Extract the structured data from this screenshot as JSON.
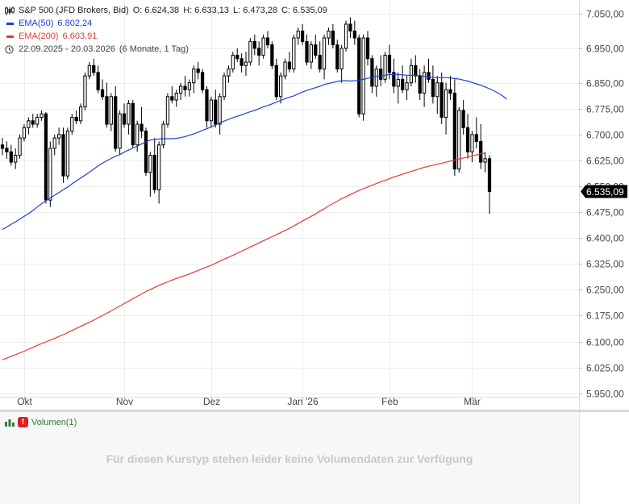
{
  "header": {
    "instrument": "S&P 500 (JFD Brokers, Bid)",
    "open_label": "O:",
    "open": "6.624,38",
    "high_label": "H:",
    "high": "6.633,13",
    "low_label": "L:",
    "low": "6.473,28",
    "close_label": "C:",
    "close": "6.535,09",
    "ema50_label": "EMA(50)",
    "ema50_value": "6.802,24",
    "ema200_label": "EMA(200)",
    "ema200_value": "6.603,91",
    "range": "22.09.2025 - 20.03.2026",
    "range_detail": "(6 Monate, 1 Tag)"
  },
  "volume": {
    "label": "Volumen(1)",
    "message": "Für diesen Kurstyp stehen leider keine Volumendaten zur Verfügung"
  },
  "colors": {
    "ema50": "#1f3fd6",
    "ema200": "#e53935",
    "candle": "#000000",
    "current_price_bg": "#000000"
  },
  "chart_data": {
    "type": "candlestick",
    "y_ticks": [
      "7.050,00",
      "6.950,00",
      "6.850,00",
      "6.775,00",
      "6.700,00",
      "6.625,00",
      "6.550,00",
      "6.475,00",
      "6.400,00",
      "6.325,00",
      "6.250,00",
      "6.175,00",
      "6.100,00",
      "6.025,00",
      "5.950,00"
    ],
    "y_tick_values": [
      7050,
      6950,
      6850,
      6775,
      6700,
      6625,
      6550,
      6475,
      6400,
      6325,
      6250,
      6175,
      6100,
      6025,
      5950
    ],
    "ylim": [
      5940,
      7090
    ],
    "x_ticks": [
      "Okt",
      "Nov",
      "Dez",
      "Jan '26",
      "Feb",
      "Mär"
    ],
    "x_tick_index": [
      5,
      28,
      48,
      69,
      89,
      108
    ],
    "current_price": "6.535,09",
    "series": [
      {
        "name": "EMA(50)",
        "values": [
          6425,
          6432,
          6440,
          6447,
          6455,
          6463,
          6471,
          6480,
          6490,
          6499,
          6508,
          6516,
          6524,
          6532,
          6540,
          6548,
          6557,
          6566,
          6574,
          6582,
          6591,
          6600,
          6609,
          6617,
          6624,
          6631,
          6637,
          6642,
          6649,
          6655,
          6661,
          6666,
          6673,
          6679,
          6684,
          6686,
          6687,
          6688,
          6688,
          6688,
          6689,
          6691,
          6694,
          6698,
          6702,
          6707,
          6712,
          6717,
          6722,
          6728,
          6734,
          6739,
          6744,
          6749,
          6753,
          6757,
          6762,
          6766,
          6770,
          6775,
          6780,
          6784,
          6789,
          6794,
          6799,
          6804,
          6808,
          6812,
          6818,
          6823,
          6828,
          6832,
          6836,
          6840,
          6845,
          6848,
          6851,
          6854,
          6856,
          6856,
          6855,
          6856,
          6858,
          6860,
          6863,
          6866,
          6869,
          6870,
          6872,
          6874,
          6874,
          6874,
          6873,
          6872,
          6872,
          6872,
          6871,
          6869,
          6867,
          6866,
          6865,
          6865,
          6865,
          6864,
          6862,
          6861,
          6858,
          6855,
          6851,
          6847,
          6843,
          6838,
          6833,
          6827,
          6820,
          6812,
          6803
        ]
      },
      {
        "name": "EMA(200)",
        "values": [
          6047,
          6052,
          6057,
          6062,
          6067,
          6072,
          6078,
          6083,
          6089,
          6094,
          6099,
          6104,
          6109,
          6115,
          6120,
          6126,
          6132,
          6138,
          6144,
          6150,
          6156,
          6162,
          6169,
          6175,
          6182,
          6189,
          6196,
          6203,
          6210,
          6217,
          6224,
          6231,
          6238,
          6245,
          6251,
          6257,
          6263,
          6268,
          6273,
          6278,
          6283,
          6287,
          6291,
          6296,
          6301,
          6306,
          6311,
          6316,
          6321,
          6327,
          6333,
          6339,
          6344,
          6350,
          6356,
          6362,
          6368,
          6374,
          6380,
          6386,
          6392,
          6398,
          6404,
          6410,
          6416,
          6422,
          6428,
          6435,
          6442,
          6449,
          6456,
          6463,
          6470,
          6478,
          6485,
          6493,
          6500,
          6507,
          6514,
          6520,
          6526,
          6532,
          6538,
          6543,
          6548,
          6553,
          6558,
          6563,
          6567,
          6572,
          6577,
          6581,
          6585,
          6589,
          6593,
          6597,
          6601,
          6605,
          6608,
          6611,
          6614,
          6617,
          6620,
          6623,
          6626,
          6629,
          6632,
          6635,
          6638,
          6641,
          6644,
          6646,
          6648,
          6650,
          6651,
          6652,
          6604
        ]
      },
      {
        "name": "OHLC",
        "values": [
          [
            6670,
            6690,
            6640,
            6660
          ],
          [
            6660,
            6680,
            6630,
            6650
          ],
          [
            6650,
            6670,
            6610,
            6620
          ],
          [
            6620,
            6660,
            6600,
            6640
          ],
          [
            6640,
            6700,
            6630,
            6690
          ],
          [
            6690,
            6730,
            6680,
            6720
          ],
          [
            6720,
            6750,
            6700,
            6740
          ],
          [
            6740,
            6760,
            6720,
            6730
          ],
          [
            6730,
            6760,
            6720,
            6750
          ],
          [
            6750,
            6770,
            6740,
            6760
          ],
          [
            6760,
            6765,
            6500,
            6510
          ],
          [
            6510,
            6680,
            6490,
            6660
          ],
          [
            6660,
            6700,
            6640,
            6690
          ],
          [
            6690,
            6720,
            6670,
            6700
          ],
          [
            6700,
            6720,
            6560,
            6580
          ],
          [
            6580,
            6720,
            6570,
            6710
          ],
          [
            6710,
            6760,
            6700,
            6750
          ],
          [
            6750,
            6770,
            6730,
            6740
          ],
          [
            6740,
            6790,
            6730,
            6780
          ],
          [
            6780,
            6880,
            6770,
            6870
          ],
          [
            6870,
            6910,
            6860,
            6900
          ],
          [
            6900,
            6920,
            6870,
            6880
          ],
          [
            6880,
            6900,
            6820,
            6830
          ],
          [
            6830,
            6860,
            6800,
            6810
          ],
          [
            6810,
            6850,
            6720,
            6730
          ],
          [
            6730,
            6820,
            6710,
            6810
          ],
          [
            6810,
            6840,
            6650,
            6660
          ],
          [
            6660,
            6770,
            6640,
            6760
          ],
          [
            6760,
            6790,
            6720,
            6730
          ],
          [
            6730,
            6800,
            6700,
            6790
          ],
          [
            6790,
            6800,
            6660,
            6670
          ],
          [
            6670,
            6740,
            6650,
            6730
          ],
          [
            6730,
            6780,
            6690,
            6710
          ],
          [
            6710,
            6720,
            6580,
            6590
          ],
          [
            6590,
            6650,
            6520,
            6640
          ],
          [
            6640,
            6690,
            6530,
            6540
          ],
          [
            6540,
            6680,
            6500,
            6670
          ],
          [
            6670,
            6740,
            6660,
            6730
          ],
          [
            6730,
            6820,
            6720,
            6810
          ],
          [
            6810,
            6840,
            6790,
            6800
          ],
          [
            6800,
            6830,
            6780,
            6820
          ],
          [
            6820,
            6850,
            6800,
            6840
          ],
          [
            6840,
            6870,
            6810,
            6830
          ],
          [
            6830,
            6860,
            6810,
            6850
          ],
          [
            6850,
            6900,
            6820,
            6890
          ],
          [
            6890,
            6910,
            6860,
            6880
          ],
          [
            6880,
            6890,
            6820,
            6830
          ],
          [
            6830,
            6840,
            6720,
            6740
          ],
          [
            6740,
            6810,
            6720,
            6800
          ],
          [
            6800,
            6830,
            6720,
            6730
          ],
          [
            6730,
            6820,
            6700,
            6810
          ],
          [
            6810,
            6880,
            6800,
            6870
          ],
          [
            6870,
            6900,
            6850,
            6890
          ],
          [
            6890,
            6940,
            6880,
            6930
          ],
          [
            6930,
            6950,
            6910,
            6920
          ],
          [
            6920,
            6935,
            6880,
            6900
          ],
          [
            6900,
            6940,
            6870,
            6910
          ],
          [
            6910,
            6980,
            6900,
            6970
          ],
          [
            6970,
            6990,
            6930,
            6950
          ],
          [
            6950,
            6970,
            6900,
            6930
          ],
          [
            6930,
            6990,
            6920,
            6980
          ],
          [
            6980,
            7000,
            6950,
            6960
          ],
          [
            6960,
            6970,
            6890,
            6900
          ],
          [
            6900,
            6920,
            6800,
            6810
          ],
          [
            6810,
            6880,
            6790,
            6870
          ],
          [
            6870,
            6920,
            6860,
            6910
          ],
          [
            6910,
            6940,
            6880,
            6890
          ],
          [
            6890,
            6990,
            6880,
            6980
          ],
          [
            6980,
            7010,
            6960,
            7000
          ],
          [
            7000,
            7020,
            6960,
            6970
          ],
          [
            6970,
            6990,
            6900,
            6910
          ],
          [
            6910,
            6970,
            6890,
            6960
          ],
          [
            6960,
            6990,
            6920,
            6930
          ],
          [
            6930,
            6970,
            6880,
            6890
          ],
          [
            6890,
            6990,
            6860,
            6980
          ],
          [
            6980,
            7010,
            6960,
            7000
          ],
          [
            7000,
            7020,
            6950,
            6960
          ],
          [
            6960,
            6975,
            6880,
            6890
          ],
          [
            6890,
            6960,
            6850,
            6950
          ],
          [
            6950,
            7030,
            6940,
            7020
          ],
          [
            7020,
            7040,
            6980,
            7000
          ],
          [
            7000,
            7030,
            6960,
            6980
          ],
          [
            6980,
            6990,
            6750,
            6760
          ],
          [
            6760,
            6990,
            6740,
            6980
          ],
          [
            6980,
            7000,
            6900,
            6920
          ],
          [
            6920,
            6930,
            6820,
            6840
          ],
          [
            6840,
            6900,
            6810,
            6890
          ],
          [
            6890,
            6930,
            6840,
            6860
          ],
          [
            6860,
            6940,
            6850,
            6930
          ],
          [
            6930,
            6960,
            6860,
            6880
          ],
          [
            6880,
            6920,
            6820,
            6840
          ],
          [
            6840,
            6880,
            6790,
            6860
          ],
          [
            6860,
            6900,
            6820,
            6830
          ],
          [
            6830,
            6870,
            6800,
            6850
          ],
          [
            6850,
            6920,
            6840,
            6900
          ],
          [
            6900,
            6930,
            6850,
            6870
          ],
          [
            6870,
            6890,
            6800,
            6820
          ],
          [
            6820,
            6900,
            6780,
            6880
          ],
          [
            6880,
            6920,
            6850,
            6860
          ],
          [
            6860,
            6900,
            6790,
            6810
          ],
          [
            6810,
            6870,
            6760,
            6850
          ],
          [
            6850,
            6880,
            6730,
            6750
          ],
          [
            6750,
            6850,
            6700,
            6830
          ],
          [
            6830,
            6870,
            6800,
            6820
          ],
          [
            6820,
            6860,
            6580,
            6600
          ],
          [
            6600,
            6780,
            6590,
            6770
          ],
          [
            6770,
            6800,
            6700,
            6720
          ],
          [
            6720,
            6760,
            6630,
            6650
          ],
          [
            6650,
            6710,
            6620,
            6700
          ],
          [
            6700,
            6750,
            6660,
            6680
          ],
          [
            6680,
            6730,
            6600,
            6620
          ],
          [
            6620,
            6650,
            6590,
            6630
          ],
          [
            6630,
            6640,
            6470,
            6535
          ]
        ]
      }
    ]
  }
}
